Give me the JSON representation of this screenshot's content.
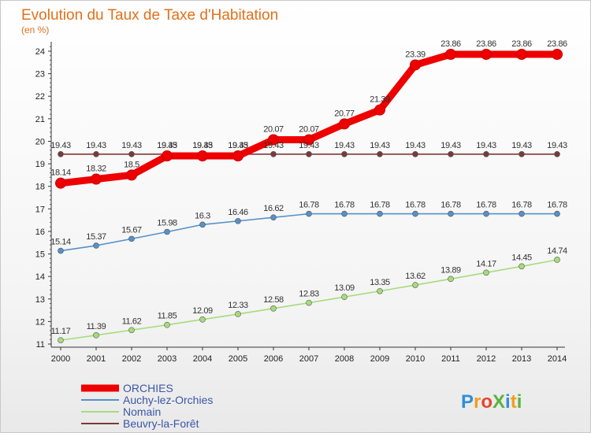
{
  "chart_data": {
    "type": "line",
    "title": "Evolution du Taux de Taxe d'Habitation",
    "subtitle": "(en %)",
    "categories": [
      "2000",
      "2001",
      "2002",
      "2003",
      "2004",
      "2005",
      "2006",
      "2007",
      "2008",
      "2009",
      "2010",
      "2011",
      "2012",
      "2013",
      "2014"
    ],
    "ylim": [
      11,
      24
    ],
    "y_ticks": [
      "11",
      "12",
      "13",
      "14",
      "15",
      "16",
      "17",
      "18",
      "19",
      "20",
      "21",
      "22",
      "23",
      "24"
    ],
    "series": [
      {
        "name": "ORCHIES",
        "color": "#ee0000",
        "emphasis": "thick",
        "values": [
          18.14,
          18.32,
          18.5,
          19.35,
          19.35,
          19.35,
          20.07,
          20.07,
          20.77,
          21.39,
          23.39,
          23.86,
          23.86,
          23.86,
          23.86
        ],
        "labels": [
          "18.14",
          "18.32",
          "18.5",
          "19.35",
          "19.35",
          "19.35",
          "20.07",
          "20.07",
          "20.77",
          "21.39",
          "23.39",
          "23.86",
          "23.86",
          "23.86",
          "23.86"
        ]
      },
      {
        "name": "Auchy-lez-Orchies",
        "color": "#5591c8",
        "values": [
          15.14,
          15.37,
          15.67,
          15.98,
          16.3,
          16.46,
          16.62,
          16.78,
          16.78,
          16.78,
          16.78,
          16.78,
          16.78,
          16.78,
          16.78
        ],
        "labels": [
          "15.14",
          "15.37",
          "15.67",
          "15.98",
          "16.3",
          "16.46",
          "16.62",
          "16.78",
          "16.78",
          "16.78",
          "16.78",
          "16.78",
          "16.78",
          "16.78",
          "16.78"
        ]
      },
      {
        "name": "Nomain",
        "color": "#a6dc7c",
        "values": [
          11.17,
          11.39,
          11.62,
          11.85,
          12.09,
          12.33,
          12.58,
          12.83,
          13.09,
          13.35,
          13.62,
          13.89,
          14.17,
          14.45,
          14.74
        ],
        "labels": [
          "11.17",
          "11.39",
          "11.62",
          "11.85",
          "12.09",
          "12.33",
          "12.58",
          "12.83",
          "13.09",
          "13.35",
          "13.62",
          "13.89",
          "14.17",
          "14.45",
          "14.74"
        ]
      },
      {
        "name": "Beuvry-la-Forêt",
        "color": "#7b3a3a",
        "values": [
          19.43,
          19.43,
          19.43,
          19.43,
          19.43,
          19.43,
          19.43,
          19.43,
          19.43,
          19.43,
          19.43,
          19.43,
          19.43,
          19.43,
          19.43
        ],
        "labels": [
          "19.43",
          "19.43",
          "19.43",
          "19.43",
          "19.43",
          "19.43",
          "19.43",
          "19.43",
          "19.43",
          "19.43",
          "19.43",
          "19.43",
          "19.43",
          "19.43",
          "19.43"
        ]
      }
    ],
    "grid": false,
    "legend_position": "bottom-left"
  },
  "brand": {
    "text": "ProXiti",
    "letters": [
      "P",
      "r",
      "o",
      "X",
      "i",
      "t",
      "i"
    ],
    "colors": [
      "#2e8fd8",
      "#f39c1f",
      "#e8452c",
      "#58b33f",
      "#2e8fd8",
      "#f39c1f",
      "#58b33f"
    ]
  }
}
